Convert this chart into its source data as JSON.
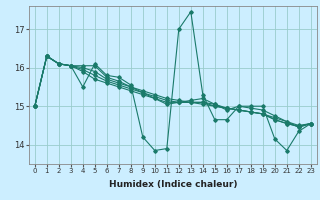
{
  "xlabel": "Humidex (Indice chaleur)",
  "bg_color": "#cceeff",
  "line_color": "#1a7a6a",
  "grid_color": "#99cccc",
  "xlim": [
    -0.5,
    23.5
  ],
  "ylim": [
    13.5,
    17.6
  ],
  "yticks": [
    14,
    15,
    16,
    17
  ],
  "xticks": [
    0,
    1,
    2,
    3,
    4,
    5,
    6,
    7,
    8,
    9,
    10,
    11,
    12,
    13,
    14,
    15,
    16,
    17,
    18,
    19,
    20,
    21,
    22,
    23
  ],
  "series": [
    [
      [
        0,
        15.0
      ],
      [
        1,
        16.3
      ],
      [
        2,
        16.1
      ],
      [
        3,
        16.05
      ],
      [
        4,
        15.5
      ],
      [
        5,
        16.1
      ],
      [
        6,
        15.8
      ],
      [
        7,
        15.75
      ],
      [
        8,
        15.55
      ],
      [
        9,
        14.2
      ],
      [
        10,
        13.85
      ],
      [
        11,
        13.9
      ],
      [
        12,
        17.0
      ],
      [
        13,
        17.45
      ],
      [
        14,
        15.3
      ],
      [
        15,
        14.65
      ],
      [
        16,
        14.65
      ],
      [
        17,
        15.0
      ],
      [
        18,
        15.0
      ],
      [
        19,
        15.0
      ],
      [
        20,
        14.15
      ],
      [
        21,
        13.85
      ],
      [
        22,
        14.35
      ],
      [
        23,
        14.55
      ]
    ],
    [
      [
        0,
        15.0
      ],
      [
        1,
        16.3
      ],
      [
        2,
        16.1
      ],
      [
        3,
        16.05
      ],
      [
        4,
        16.05
      ],
      [
        5,
        16.05
      ],
      [
        6,
        15.75
      ],
      [
        7,
        15.65
      ],
      [
        8,
        15.5
      ],
      [
        9,
        15.35
      ],
      [
        10,
        15.2
      ],
      [
        11,
        15.05
      ],
      [
        12,
        15.1
      ],
      [
        13,
        15.15
      ],
      [
        14,
        15.2
      ],
      [
        15,
        15.05
      ],
      [
        16,
        14.9
      ],
      [
        17,
        15.0
      ],
      [
        18,
        14.95
      ],
      [
        19,
        14.9
      ],
      [
        20,
        14.75
      ],
      [
        21,
        14.6
      ],
      [
        22,
        14.45
      ],
      [
        23,
        14.55
      ]
    ],
    [
      [
        0,
        15.0
      ],
      [
        1,
        16.3
      ],
      [
        2,
        16.1
      ],
      [
        3,
        16.05
      ],
      [
        4,
        16.0
      ],
      [
        5,
        15.9
      ],
      [
        6,
        15.7
      ],
      [
        7,
        15.6
      ],
      [
        8,
        15.5
      ],
      [
        9,
        15.4
      ],
      [
        10,
        15.3
      ],
      [
        11,
        15.2
      ],
      [
        12,
        15.15
      ],
      [
        13,
        15.1
      ],
      [
        14,
        15.1
      ],
      [
        15,
        15.05
      ],
      [
        16,
        14.95
      ],
      [
        17,
        14.9
      ],
      [
        18,
        14.85
      ],
      [
        19,
        14.8
      ],
      [
        20,
        14.7
      ],
      [
        21,
        14.6
      ],
      [
        22,
        14.5
      ],
      [
        23,
        14.55
      ]
    ],
    [
      [
        0,
        15.0
      ],
      [
        1,
        16.3
      ],
      [
        2,
        16.1
      ],
      [
        3,
        16.05
      ],
      [
        4,
        15.95
      ],
      [
        5,
        15.8
      ],
      [
        6,
        15.65
      ],
      [
        7,
        15.55
      ],
      [
        8,
        15.45
      ],
      [
        9,
        15.35
      ],
      [
        10,
        15.25
      ],
      [
        11,
        15.15
      ],
      [
        12,
        15.1
      ],
      [
        13,
        15.1
      ],
      [
        14,
        15.1
      ],
      [
        15,
        15.0
      ],
      [
        16,
        14.95
      ],
      [
        17,
        14.9
      ],
      [
        18,
        14.85
      ],
      [
        19,
        14.8
      ],
      [
        20,
        14.65
      ],
      [
        21,
        14.55
      ],
      [
        22,
        14.48
      ],
      [
        23,
        14.55
      ]
    ],
    [
      [
        0,
        15.0
      ],
      [
        1,
        16.3
      ],
      [
        2,
        16.1
      ],
      [
        3,
        16.05
      ],
      [
        4,
        15.9
      ],
      [
        5,
        15.7
      ],
      [
        6,
        15.6
      ],
      [
        7,
        15.5
      ],
      [
        8,
        15.4
      ],
      [
        9,
        15.3
      ],
      [
        10,
        15.2
      ],
      [
        11,
        15.1
      ],
      [
        12,
        15.1
      ],
      [
        13,
        15.1
      ],
      [
        14,
        15.05
      ],
      [
        15,
        15.0
      ],
      [
        16,
        14.95
      ],
      [
        17,
        14.9
      ],
      [
        18,
        14.85
      ],
      [
        19,
        14.8
      ],
      [
        20,
        14.65
      ],
      [
        21,
        14.55
      ],
      [
        22,
        14.47
      ],
      [
        23,
        14.55
      ]
    ]
  ]
}
